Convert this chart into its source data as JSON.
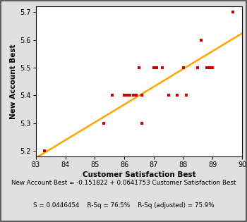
{
  "x_data": [
    83.3,
    85.3,
    85.6,
    86.0,
    86.1,
    86.2,
    86.3,
    86.3,
    86.4,
    86.5,
    86.6,
    86.6,
    87.0,
    87.1,
    87.3,
    87.5,
    87.5,
    87.8,
    88.0,
    88.0,
    88.1,
    88.5,
    88.6,
    88.8,
    88.8,
    88.9,
    89.0,
    89.7
  ],
  "y_data": [
    5.2,
    5.3,
    5.4,
    5.4,
    5.4,
    5.4,
    5.4,
    5.4,
    5.4,
    5.5,
    5.3,
    5.4,
    5.5,
    5.5,
    5.5,
    5.4,
    5.4,
    5.4,
    5.5,
    5.5,
    5.4,
    5.5,
    5.6,
    5.5,
    5.5,
    5.5,
    5.5,
    5.7
  ],
  "scatter_color": "#cc0000",
  "line_color": "#ffa500",
  "line_intercept": -0.151822,
  "line_slope": 0.0641753,
  "xlim": [
    83,
    90
  ],
  "ylim": [
    5.18,
    5.72
  ],
  "xticks": [
    83,
    84,
    85,
    86,
    87,
    88,
    89,
    90
  ],
  "yticks": [
    5.2,
    5.3,
    5.4,
    5.5,
    5.6,
    5.7
  ],
  "xlabel": "Customer Satisfaction Best",
  "ylabel": "New Account Best",
  "equation_line1": "New Account Best = -0.151822 + 0.0641753 Customer Satisfaction Best",
  "equation_line2": "S = 0.0446454    R-Sq = 76.5%    R-Sq (adjusted) = 75.9%",
  "bg_color": "#e0e0e0",
  "plot_bg_color": "#ffffff",
  "marker_size": 3.5,
  "border_color": "#555555"
}
